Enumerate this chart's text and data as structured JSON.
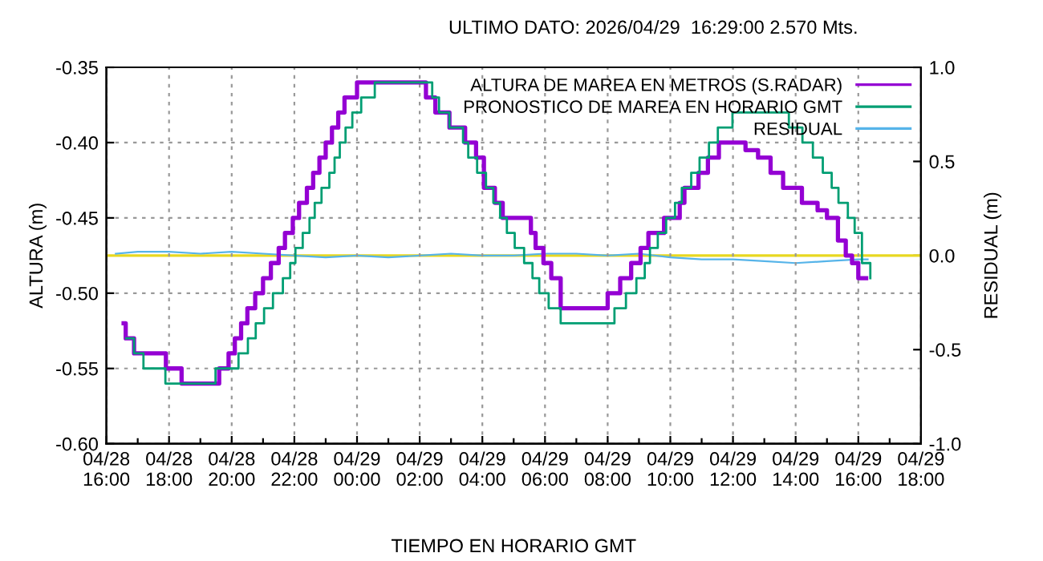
{
  "chart_data": {
    "type": "step",
    "title": "ULTIMO DATO: 2026/04/29  16:29:00 2.570 Mts.",
    "xlabel": "TIEMPO EN HORARIO GMT",
    "ylabel": "ALTURA (m)",
    "y2label": "RESIDUAL (m)",
    "xlim": [
      "2026-04-28T16:00",
      "2026-04-29T18:00"
    ],
    "ylim": [
      -0.6,
      -0.35
    ],
    "y2lim": [
      -1,
      1
    ],
    "xticks": [
      {
        "value": "2026-04-28T16:00",
        "label": "04/28\n16:00"
      },
      {
        "value": "2026-04-28T17:00",
        "label": null
      },
      {
        "value": "2026-04-28T18:00",
        "label": "04/28\n18:00"
      },
      {
        "value": "2026-04-28T19:00",
        "label": null
      },
      {
        "value": "2026-04-28T20:00",
        "label": "04/28\n20:00"
      },
      {
        "value": "2026-04-28T21:00",
        "label": null
      },
      {
        "value": "2026-04-28T22:00",
        "label": "04/28\n22:00"
      },
      {
        "value": "2026-04-28T23:00",
        "label": null
      },
      {
        "value": "2026-04-29T00:00",
        "label": "04/29\n00:00"
      },
      {
        "value": "2026-04-29T01:00",
        "label": null
      },
      {
        "value": "2026-04-29T02:00",
        "label": "04/29\n02:00"
      },
      {
        "value": "2026-04-29T03:00",
        "label": null
      },
      {
        "value": "2026-04-29T04:00",
        "label": "04/29\n04:00"
      },
      {
        "value": "2026-04-29T05:00",
        "label": null
      },
      {
        "value": "2026-04-29T06:00",
        "label": "04/29\n06:00"
      },
      {
        "value": "2026-04-29T07:00",
        "label": null
      },
      {
        "value": "2026-04-29T08:00",
        "label": "04/29\n08:00"
      },
      {
        "value": "2026-04-29T09:00",
        "label": null
      },
      {
        "value": "2026-04-29T10:00",
        "label": "04/29\n10:00"
      },
      {
        "value": "2026-04-29T11:00",
        "label": null
      },
      {
        "value": "2026-04-29T12:00",
        "label": "04/29\n12:00"
      },
      {
        "value": "2026-04-29T13:00",
        "label": null
      },
      {
        "value": "2026-04-29T14:00",
        "label": "04/29\n14:00"
      },
      {
        "value": "2026-04-29T15:00",
        "label": null
      },
      {
        "value": "2026-04-29T16:00",
        "label": "04/29\n16:00"
      },
      {
        "value": "2026-04-29T17:00",
        "label": null
      },
      {
        "value": "2026-04-29T18:00",
        "label": "04/29\n18:00"
      }
    ],
    "yticks": [
      {
        "value": -0.6,
        "label": "-0.60"
      },
      {
        "value": -0.55,
        "label": "-0.55"
      },
      {
        "value": -0.5,
        "label": "-0.50"
      },
      {
        "value": -0.45,
        "label": "-0.45"
      },
      {
        "value": -0.4,
        "label": "-0.40"
      },
      {
        "value": -0.35,
        "label": "-0.35"
      }
    ],
    "y2ticks": [
      {
        "value": -1,
        "label": "-1.0"
      },
      {
        "value": -0.5,
        "label": "-0.5"
      },
      {
        "value": 0,
        "label": "0.0"
      },
      {
        "value": 0.5,
        "label": "0.5"
      },
      {
        "value": 1,
        "label": "1.0"
      }
    ],
    "grid": true,
    "legend": "top right",
    "marker": "none",
    "line_style": "solid",
    "ref_lines": [
      {
        "axis": "y2",
        "value": 0,
        "color": "#e8d820"
      }
    ],
    "series": [
      {
        "name": "ALTURA DE MAREA EN METROS (S.RADAR)",
        "color": "#9400d3",
        "x": [
          "2026-04-28T16:33",
          "2026-04-28T16:37",
          "2026-04-28T16:53",
          "2026-04-28T17:54",
          "2026-04-28T18:24",
          "2026-04-28T19:36",
          "2026-04-28T19:54",
          "2026-04-28T20:06",
          "2026-04-28T20:18",
          "2026-04-28T20:30",
          "2026-04-28T20:45",
          "2026-04-28T21:00",
          "2026-04-28T21:15",
          "2026-04-28T21:30",
          "2026-04-28T21:42",
          "2026-04-28T21:57",
          "2026-04-28T22:09",
          "2026-04-28T22:24",
          "2026-04-28T22:36",
          "2026-04-28T22:48",
          "2026-04-28T23:00",
          "2026-04-28T23:12",
          "2026-04-28T23:24",
          "2026-04-28T23:36",
          "2026-04-28T23:48",
          "2026-04-29T00:00",
          "2026-04-29T00:30",
          "2026-04-29T02:12",
          "2026-04-29T02:30",
          "2026-04-29T02:57",
          "2026-04-29T03:27",
          "2026-04-29T03:48",
          "2026-04-29T04:03",
          "2026-04-29T04:24",
          "2026-04-29T04:39",
          "2026-04-29T05:33",
          "2026-04-29T05:42",
          "2026-04-29T05:57",
          "2026-04-29T06:12",
          "2026-04-29T06:30",
          "2026-04-29T08:00",
          "2026-04-29T08:24",
          "2026-04-29T08:45",
          "2026-04-29T09:03",
          "2026-04-29T09:18",
          "2026-04-29T09:48",
          "2026-04-29T10:18",
          "2026-04-29T10:27",
          "2026-04-29T10:54",
          "2026-04-29T11:12",
          "2026-04-29T11:33",
          "2026-04-29T12:24",
          "2026-04-29T12:48",
          "2026-04-29T13:12",
          "2026-04-29T13:36",
          "2026-04-29T14:12",
          "2026-04-29T14:42",
          "2026-04-29T15:00",
          "2026-04-29T15:21",
          "2026-04-29T15:36",
          "2026-04-29T15:48",
          "2026-04-29T16:00",
          "2026-04-29T16:15"
        ],
        "values": [
          -0.52,
          -0.53,
          -0.54,
          -0.55,
          -0.56,
          -0.55,
          -0.54,
          -0.53,
          -0.52,
          -0.51,
          -0.5,
          -0.49,
          -0.48,
          -0.47,
          -0.46,
          -0.45,
          -0.44,
          -0.43,
          -0.42,
          -0.41,
          -0.4,
          -0.39,
          -0.38,
          -0.37,
          -0.37,
          -0.36,
          -0.36,
          -0.37,
          -0.38,
          -0.39,
          -0.4,
          -0.41,
          -0.43,
          -0.44,
          -0.45,
          -0.46,
          -0.47,
          -0.48,
          -0.49,
          -0.51,
          -0.5,
          -0.49,
          -0.48,
          -0.47,
          -0.46,
          -0.45,
          -0.44,
          -0.43,
          -0.42,
          -0.41,
          -0.4,
          -0.405,
          -0.41,
          -0.42,
          -0.43,
          -0.44,
          -0.445,
          -0.45,
          -0.465,
          -0.475,
          -0.48,
          -0.49,
          -0.49
        ]
      },
      {
        "name": "PRONOSTICO DE MAREA EN HORARIO GMT",
        "color": "#009e73",
        "x": [
          "2026-04-28T16:38",
          "2026-04-28T16:53",
          "2026-04-28T17:11",
          "2026-04-28T17:53",
          "2026-04-28T19:29",
          "2026-04-28T20:13",
          "2026-04-28T20:31",
          "2026-04-28T20:46",
          "2026-04-28T21:02",
          "2026-04-28T21:19",
          "2026-04-28T21:38",
          "2026-04-28T21:52",
          "2026-04-28T22:02",
          "2026-04-28T22:16",
          "2026-04-28T22:29",
          "2026-04-28T22:39",
          "2026-04-28T22:52",
          "2026-04-28T23:07",
          "2026-04-28T23:17",
          "2026-04-28T23:27",
          "2026-04-28T23:38",
          "2026-04-28T23:51",
          "2026-04-29T00:08",
          "2026-04-29T00:34",
          "2026-04-29T02:24",
          "2026-04-29T02:37",
          "2026-04-29T02:57",
          "2026-04-29T03:23",
          "2026-04-29T03:33",
          "2026-04-29T03:50",
          "2026-04-29T04:07",
          "2026-04-29T04:21",
          "2026-04-29T04:34",
          "2026-04-29T04:47",
          "2026-04-29T05:02",
          "2026-04-29T05:20",
          "2026-04-29T05:36",
          "2026-04-29T05:49",
          "2026-04-29T06:07",
          "2026-04-29T06:30",
          "2026-04-29T08:13",
          "2026-04-29T08:35",
          "2026-04-29T08:55",
          "2026-04-29T09:11",
          "2026-04-29T09:21",
          "2026-04-29T09:36",
          "2026-04-29T09:52",
          "2026-04-29T10:09",
          "2026-04-29T10:22",
          "2026-04-29T10:40",
          "2026-04-29T10:56",
          "2026-04-29T11:14",
          "2026-04-29T11:31",
          "2026-04-29T11:59",
          "2026-04-29T13:47",
          "2026-04-29T14:13",
          "2026-04-29T14:33",
          "2026-04-29T14:52",
          "2026-04-29T15:09",
          "2026-04-29T15:22",
          "2026-04-29T15:40",
          "2026-04-29T15:53",
          "2026-04-29T16:07",
          "2026-04-29T16:23"
        ],
        "values": [
          -0.53,
          -0.54,
          -0.55,
          -0.56,
          -0.55,
          -0.54,
          -0.53,
          -0.52,
          -0.51,
          -0.5,
          -0.49,
          -0.48,
          -0.47,
          -0.46,
          -0.45,
          -0.44,
          -0.43,
          -0.42,
          -0.41,
          -0.4,
          -0.39,
          -0.38,
          -0.37,
          -0.36,
          -0.37,
          -0.38,
          -0.39,
          -0.4,
          -0.41,
          -0.42,
          -0.43,
          -0.44,
          -0.45,
          -0.46,
          -0.47,
          -0.48,
          -0.49,
          -0.5,
          -0.51,
          -0.52,
          -0.51,
          -0.5,
          -0.49,
          -0.48,
          -0.47,
          -0.46,
          -0.45,
          -0.44,
          -0.43,
          -0.42,
          -0.41,
          -0.4,
          -0.39,
          -0.38,
          -0.39,
          -0.4,
          -0.41,
          -0.42,
          -0.43,
          -0.44,
          -0.45,
          -0.46,
          -0.48,
          -0.49
        ]
      },
      {
        "name": "RESIDUAL",
        "color": "#56b4e9",
        "type": "line",
        "axis": "y2",
        "x": [
          "2026-04-28T16:18",
          "2026-04-28T17:00",
          "2026-04-28T18:00",
          "2026-04-28T19:00",
          "2026-04-28T20:00",
          "2026-04-28T21:00",
          "2026-04-28T22:00",
          "2026-04-28T23:00",
          "2026-04-29T00:00",
          "2026-04-29T01:00",
          "2026-04-29T02:00",
          "2026-04-29T03:00",
          "2026-04-29T04:00",
          "2026-04-29T05:00",
          "2026-04-29T06:00",
          "2026-04-29T07:00",
          "2026-04-29T08:00",
          "2026-04-29T09:00",
          "2026-04-29T10:00",
          "2026-04-29T11:00",
          "2026-04-29T12:00",
          "2026-04-29T13:00",
          "2026-04-29T14:00",
          "2026-04-29T15:00",
          "2026-04-29T16:00",
          "2026-04-29T16:18"
        ],
        "values": [
          0.01,
          0.02,
          0.02,
          0.01,
          0.02,
          0.01,
          0.0,
          -0.01,
          0.0,
          -0.01,
          0.0,
          0.01,
          0.0,
          0.0,
          0.01,
          0.01,
          0.0,
          0.01,
          -0.01,
          -0.02,
          -0.02,
          -0.03,
          -0.04,
          -0.03,
          -0.02,
          -0.02
        ]
      }
    ]
  }
}
